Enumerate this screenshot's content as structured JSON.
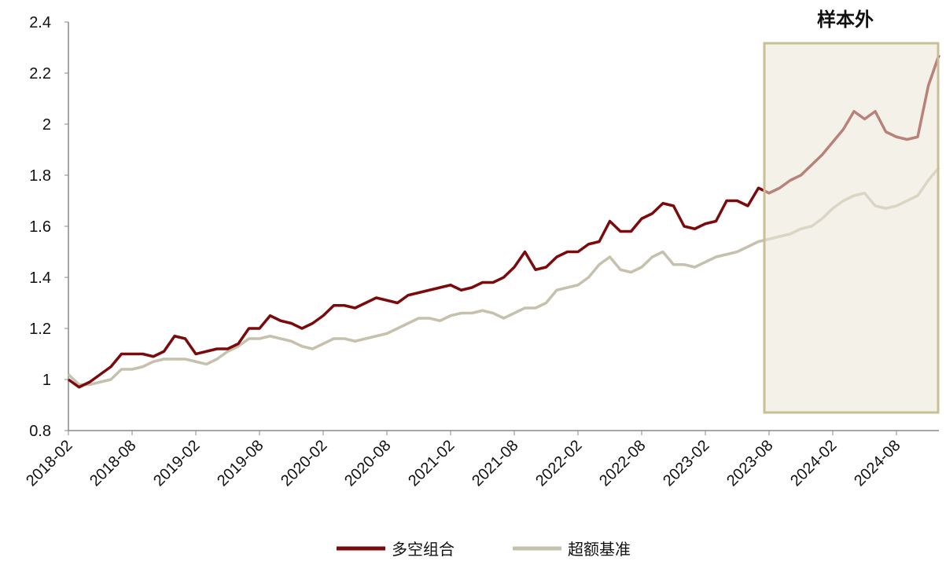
{
  "chart_data": {
    "type": "line",
    "annotation": "样本外",
    "categories": [
      "2018-02",
      null,
      null,
      null,
      null,
      null,
      "2018-08",
      null,
      null,
      null,
      null,
      null,
      "2019-02",
      null,
      null,
      null,
      null,
      null,
      "2019-08",
      null,
      null,
      null,
      null,
      null,
      "2020-02",
      null,
      null,
      null,
      null,
      null,
      "2020-08",
      null,
      null,
      null,
      null,
      null,
      "2021-02",
      null,
      null,
      null,
      null,
      null,
      "2021-08",
      null,
      null,
      null,
      null,
      null,
      "2022-02",
      null,
      null,
      null,
      null,
      null,
      "2022-08",
      null,
      null,
      null,
      null,
      null,
      "2023-02",
      null,
      null,
      null,
      null,
      null,
      "2023-08",
      null,
      null,
      null,
      null,
      null,
      "2024-02",
      null,
      null,
      null,
      null,
      null,
      "2024-08",
      null,
      null,
      null,
      null
    ],
    "series": [
      {
        "name": "多空组合",
        "color": "#7a0a0c",
        "values": [
          1.0,
          0.97,
          0.99,
          1.02,
          1.05,
          1.1,
          1.1,
          1.1,
          1.09,
          1.11,
          1.17,
          1.16,
          1.1,
          1.11,
          1.12,
          1.12,
          1.14,
          1.2,
          1.2,
          1.25,
          1.23,
          1.22,
          1.2,
          1.22,
          1.25,
          1.29,
          1.29,
          1.28,
          1.3,
          1.32,
          1.31,
          1.3,
          1.33,
          1.34,
          1.35,
          1.36,
          1.37,
          1.35,
          1.36,
          1.38,
          1.38,
          1.4,
          1.44,
          1.5,
          1.43,
          1.44,
          1.48,
          1.5,
          1.5,
          1.53,
          1.54,
          1.62,
          1.58,
          1.58,
          1.63,
          1.65,
          1.69,
          1.68,
          1.6,
          1.59,
          1.61,
          1.62,
          1.7,
          1.7,
          1.68,
          1.75,
          1.73,
          1.75,
          1.78,
          1.8,
          1.84,
          1.88,
          1.93,
          1.98,
          2.05,
          2.02,
          2.05,
          1.97,
          1.95,
          1.94,
          1.95,
          2.15,
          2.27
        ]
      },
      {
        "name": "超额基准",
        "color": "#c6c1ad",
        "values": [
          1.02,
          0.98,
          0.98,
          0.99,
          1.0,
          1.04,
          1.04,
          1.05,
          1.07,
          1.08,
          1.08,
          1.08,
          1.07,
          1.06,
          1.08,
          1.11,
          1.13,
          1.16,
          1.16,
          1.17,
          1.16,
          1.15,
          1.13,
          1.12,
          1.14,
          1.16,
          1.16,
          1.15,
          1.16,
          1.17,
          1.18,
          1.2,
          1.22,
          1.24,
          1.24,
          1.23,
          1.25,
          1.26,
          1.26,
          1.27,
          1.26,
          1.24,
          1.26,
          1.28,
          1.28,
          1.3,
          1.35,
          1.36,
          1.37,
          1.4,
          1.45,
          1.48,
          1.43,
          1.42,
          1.44,
          1.48,
          1.5,
          1.45,
          1.45,
          1.44,
          1.46,
          1.48,
          1.49,
          1.5,
          1.52,
          1.54,
          1.55,
          1.56,
          1.57,
          1.59,
          1.6,
          1.63,
          1.67,
          1.7,
          1.72,
          1.73,
          1.68,
          1.67,
          1.68,
          1.7,
          1.72,
          1.78,
          1.83
        ]
      }
    ],
    "ylim": [
      0.8,
      2.4
    ],
    "yticks": [
      0.8,
      1,
      1.2,
      1.4,
      1.6,
      1.8,
      2,
      2.2,
      2.4
    ],
    "grid": false
  }
}
